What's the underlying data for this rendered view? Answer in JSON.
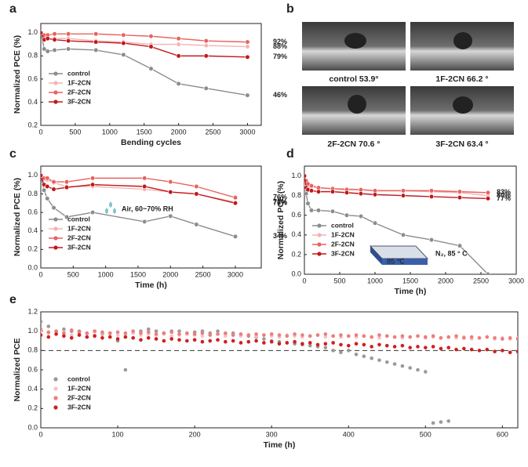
{
  "chart_data": [
    {
      "type": "line",
      "panel": "a",
      "xlabel": "Bending cycles",
      "ylabel": "Normalized PCE (%)",
      "x": [
        0,
        50,
        100,
        200,
        400,
        800,
        1200,
        1600,
        2000,
        2400,
        3000
      ],
      "xlim": [
        0,
        3200
      ],
      "xticks": [
        0,
        500,
        1000,
        1500,
        2000,
        2500,
        3000
      ],
      "ylim": [
        0.2,
        1.08
      ],
      "yticks": [
        0.2,
        0.4,
        0.6,
        0.8,
        {
          "value": 1.0,
          "label": "1.0"
        }
      ],
      "legend": "lower-left",
      "series": [
        {
          "name": "control",
          "color": "#8c8c8c",
          "values": [
            1.0,
            0.86,
            0.84,
            0.85,
            0.86,
            0.85,
            0.81,
            0.69,
            0.56,
            0.52,
            0.46
          ],
          "end_label": "46%"
        },
        {
          "name": "1F-2CN",
          "color": "#f4b3b3",
          "values": [
            1.0,
            0.97,
            0.95,
            0.95,
            0.95,
            0.93,
            0.92,
            0.9,
            0.9,
            0.89,
            0.88
          ],
          "end_label": "88%"
        },
        {
          "name": "2F-2CN",
          "color": "#e8625f",
          "values": [
            1.0,
            0.98,
            0.98,
            0.99,
            0.99,
            0.99,
            0.98,
            0.97,
            0.95,
            0.93,
            0.92
          ],
          "end_label": "92%"
        },
        {
          "name": "3F-2CN",
          "color": "#c0191b",
          "values": [
            1.0,
            0.94,
            0.95,
            0.94,
            0.93,
            0.92,
            0.91,
            0.88,
            0.8,
            0.8,
            0.79
          ],
          "end_label": "79%"
        }
      ]
    },
    {
      "type": "line",
      "panel": "c",
      "xlabel": "Time (h)",
      "ylabel": "Normalized PCE (%)",
      "annotation": "Air, 60~70% RH",
      "x": [
        0,
        50,
        100,
        200,
        400,
        800,
        1600,
        2000,
        2400,
        3000
      ],
      "xlim": [
        0,
        3400
      ],
      "xticks": [
        0,
        500,
        1000,
        1500,
        2000,
        2500,
        3000
      ],
      "ylim": [
        0,
        1.1
      ],
      "yticks": [
        {
          "value": 0.0,
          "label": "0.0"
        },
        0.2,
        0.4,
        0.6,
        0.8,
        {
          "value": 1.0,
          "label": "1.0"
        }
      ],
      "legend": "lower-left",
      "series": [
        {
          "name": "control",
          "color": "#8c8c8c",
          "values": [
            1.0,
            0.84,
            0.75,
            0.65,
            0.55,
            0.6,
            0.5,
            0.56,
            0.47,
            0.34
          ],
          "end_label": "34%"
        },
        {
          "name": "1F-2CN",
          "color": "#f4b3b3",
          "values": [
            1.0,
            0.96,
            0.95,
            0.92,
            0.88,
            0.88,
            0.85,
            0.82,
            0.8,
            0.71
          ],
          "end_label": "71%"
        },
        {
          "name": "2F-2CN",
          "color": "#e8625f",
          "values": [
            1.0,
            0.97,
            0.97,
            0.93,
            0.93,
            0.97,
            0.97,
            0.93,
            0.88,
            0.76
          ],
          "end_label": "76%"
        },
        {
          "name": "3F-2CN",
          "color": "#c0191b",
          "values": [
            1.0,
            0.9,
            0.88,
            0.85,
            0.87,
            0.9,
            0.88,
            0.82,
            0.8,
            0.7
          ],
          "end_label": "70%"
        }
      ]
    },
    {
      "type": "line",
      "panel": "d",
      "xlabel": "Time (h)",
      "ylabel": "Normalized PCE (%)",
      "annotation": "N₂, 85 ° C",
      "heater_label": "85 ℃",
      "x": [
        0,
        25,
        50,
        100,
        200,
        400,
        600,
        800,
        1000,
        1400,
        1800,
        2200,
        2600
      ],
      "xlim": [
        0,
        3000
      ],
      "xticks": [
        0,
        500,
        1000,
        1500,
        2000,
        2500,
        3000
      ],
      "ylim": [
        0,
        1.1
      ],
      "yticks": [
        {
          "value": 0.0,
          "label": "0.0"
        },
        0.2,
        0.4,
        0.6,
        0.8,
        {
          "value": 1.0,
          "label": "1.0"
        }
      ],
      "legend": "lower-left",
      "series": [
        {
          "name": "control",
          "color": "#8c8c8c",
          "values": [
            1.0,
            0.82,
            0.72,
            0.65,
            0.65,
            0.64,
            0.6,
            0.59,
            0.52,
            0.4,
            0.35,
            0.29,
            0.0
          ]
        },
        {
          "name": "1F-2CN",
          "color": "#f4b3b3",
          "values": [
            1.0,
            0.92,
            0.9,
            0.89,
            0.88,
            0.87,
            0.87,
            0.86,
            0.85,
            0.85,
            0.84,
            0.83,
            0.8
          ],
          "end_label": "80%"
        },
        {
          "name": "2F-2CN",
          "color": "#e8625f",
          "values": [
            1.0,
            0.95,
            0.92,
            0.9,
            0.88,
            0.87,
            0.86,
            0.86,
            0.85,
            0.85,
            0.85,
            0.84,
            0.83
          ],
          "end_label": "83%"
        },
        {
          "name": "3F-2CN",
          "color": "#c0191b",
          "values": [
            1.0,
            0.88,
            0.86,
            0.85,
            0.84,
            0.84,
            0.83,
            0.82,
            0.81,
            0.8,
            0.79,
            0.78,
            0.77
          ],
          "end_label": "77%"
        }
      ]
    },
    {
      "type": "scatter",
      "panel": "e",
      "xlabel": "Time (h)",
      "ylabel": "Normalized PCE",
      "reference_line": 0.8,
      "x": [
        0,
        10,
        20,
        30,
        40,
        50,
        60,
        70,
        80,
        90,
        100,
        110,
        120,
        130,
        140,
        150,
        160,
        170,
        180,
        190,
        200,
        210,
        220,
        230,
        240,
        250,
        260,
        270,
        280,
        290,
        300,
        310,
        320,
        330,
        340,
        350,
        360,
        370,
        380,
        390,
        400,
        410,
        420,
        430,
        440,
        450,
        460,
        470,
        480,
        490,
        500,
        510,
        520,
        530,
        540,
        550,
        560,
        570,
        580,
        590,
        600,
        610,
        620
      ],
      "xlim": [
        0,
        620
      ],
      "xticks": [
        0,
        100,
        200,
        300,
        400,
        500,
        600
      ],
      "ylim": [
        0,
        1.2
      ],
      "yticks": [
        {
          "value": 0.0,
          "label": "0.0"
        },
        0.2,
        0.4,
        0.6,
        0.8,
        {
          "value": 1.0,
          "label": "1.0"
        },
        1.2
      ],
      "legend": "lower-left",
      "series": [
        {
          "name": "control",
          "color": "#9a9a9a",
          "values": [
            1.1,
            1.05,
            1.0,
            1.02,
            1.0,
            1.0,
            0.98,
            1.0,
            0.97,
            0.98,
            0.9,
            0.6,
            0.98,
            1.0,
            1.02,
            1.0,
            0.98,
            1.0,
            1.0,
            0.97,
            0.99,
            1.0,
            0.98,
            1.0,
            0.97,
            0.98,
            0.96,
            0.95,
            0.94,
            0.92,
            0.9,
            0.89,
            0.88,
            0.87,
            0.86,
            0.85,
            0.84,
            0.83,
            0.8,
            0.78,
            0.8,
            0.76,
            0.74,
            0.72,
            0.7,
            0.68,
            0.66,
            0.64,
            0.62,
            0.6,
            0.58,
            0.05,
            0.06,
            0.07,
            null,
            null,
            null,
            null,
            null,
            null,
            null,
            null,
            null
          ]
        },
        {
          "name": "1F-2CN",
          "color": "#f7c2c2",
          "values": [
            1.0,
            0.98,
            0.97,
            0.99,
            0.96,
            0.98,
            0.97,
            0.96,
            0.98,
            0.97,
            0.96,
            0.97,
            0.98,
            0.96,
            0.97,
            0.96,
            0.97,
            0.95,
            0.96,
            0.97,
            0.96,
            0.95,
            0.96,
            0.97,
            0.95,
            0.96,
            0.95,
            0.96,
            0.95,
            0.96,
            0.95,
            0.94,
            0.96,
            0.95,
            0.94,
            0.95,
            0.96,
            0.94,
            0.95,
            0.94,
            0.95,
            0.94,
            0.95,
            0.94,
            0.93,
            0.95,
            0.94,
            0.93,
            0.94,
            0.95,
            0.93,
            0.94,
            0.93,
            0.94,
            0.93,
            0.94,
            0.92,
            0.93,
            0.94,
            0.92,
            0.93,
            0.92,
            0.93
          ]
        },
        {
          "name": "2F-2CN",
          "color": "#ee7d7a",
          "values": [
            1.02,
            0.99,
            1.0,
            0.98,
            1.01,
            0.99,
            0.98,
            1.0,
            0.99,
            0.98,
            0.99,
            0.98,
            1.0,
            0.98,
            0.99,
            0.97,
            0.98,
            0.99,
            0.97,
            0.98,
            0.97,
            0.98,
            0.96,
            0.97,
            0.98,
            0.96,
            0.97,
            0.96,
            0.97,
            0.96,
            0.97,
            0.96,
            0.95,
            0.97,
            0.96,
            0.95,
            0.96,
            0.97,
            0.95,
            0.96,
            0.95,
            0.96,
            0.95,
            0.94,
            0.96,
            0.95,
            0.94,
            0.95,
            0.94,
            0.95,
            0.94,
            0.95,
            0.93,
            0.94,
            0.95,
            0.93,
            0.94,
            0.93,
            0.94,
            0.93,
            0.92,
            0.93,
            0.92
          ]
        },
        {
          "name": "3F-2CN",
          "color": "#d01f1f",
          "values": [
            0.96,
            0.94,
            0.97,
            0.95,
            0.93,
            0.96,
            0.94,
            0.95,
            0.93,
            0.94,
            0.92,
            0.94,
            0.93,
            0.91,
            0.93,
            0.92,
            0.9,
            0.92,
            0.91,
            0.9,
            0.91,
            0.89,
            0.9,
            0.91,
            0.89,
            0.9,
            0.88,
            0.89,
            0.9,
            0.88,
            0.89,
            0.87,
            0.88,
            0.89,
            0.87,
            0.88,
            0.86,
            0.87,
            0.88,
            0.86,
            0.85,
            0.87,
            0.86,
            0.84,
            0.86,
            0.85,
            0.84,
            0.85,
            0.83,
            0.84,
            0.83,
            0.84,
            0.82,
            0.83,
            0.81,
            0.82,
            0.81,
            0.8,
            0.81,
            0.79,
            0.8,
            0.78,
            0.79
          ]
        }
      ]
    }
  ],
  "contact_angle": {
    "panel": "b",
    "labels": [
      "control 53.9°",
      "1F-2CN 66.2 °",
      "2F-2CN 70.6 °",
      "3F-2CN 63.4 °"
    ]
  }
}
